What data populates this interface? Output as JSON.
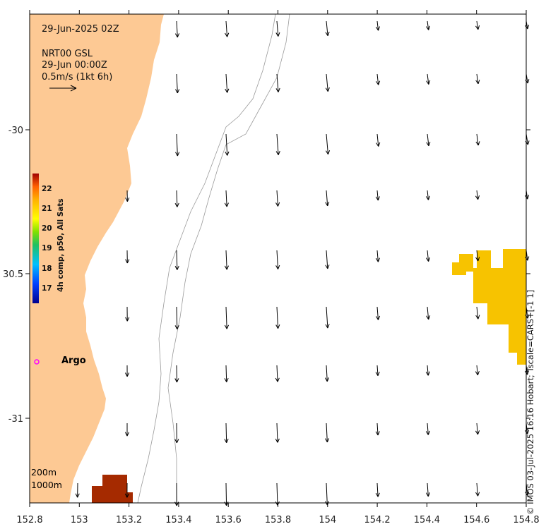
{
  "header": {
    "date_label": "29-Jun-2025 02Z",
    "product_label": "NRT00 GSL",
    "product_time": "29-Jun 00:00Z",
    "scale_label": "0.5m/s (1kt 6h)"
  },
  "x_axis": {
    "ticks": [
      "152.8",
      "153",
      "153.2",
      "153.4",
      "153.6",
      "153.8",
      "154",
      "154.2",
      "154.4",
      "154.6",
      "154.8"
    ]
  },
  "y_axis": {
    "ticks": [
      "-30",
      "30.5",
      "-31"
    ]
  },
  "colorbar": {
    "title": "4h comp, p50, All Sats",
    "ticks": [
      "22",
      "21",
      "20",
      "19",
      "18",
      "17"
    ]
  },
  "legend": {
    "argo_label": "Argo",
    "depth_200": "200m",
    "depth_1000": "1000m"
  },
  "credit": "© IMOS 03-Jul-2025 16:16 Hobart; Tscale=CARS+[-1 1]",
  "colors": {
    "land": "#fdc994",
    "sst_warm": "#f7c300",
    "sst_hot": "#a52a00",
    "argo": "#ff00ff",
    "isobath": "#999999"
  }
}
